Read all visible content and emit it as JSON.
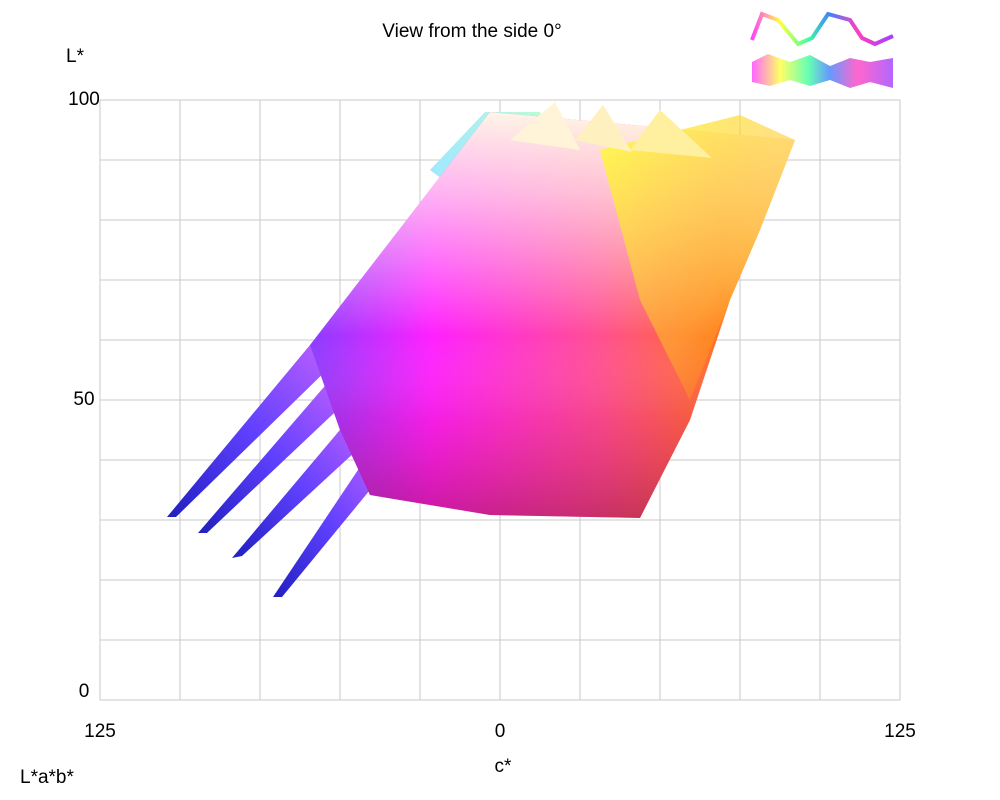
{
  "chart_data": {
    "type": "gamut",
    "title": "View from the side 0°",
    "ylabel": "L*",
    "xlabel": "c*",
    "footer": "L*a*b*",
    "xlim": [
      -125,
      125
    ],
    "ylim": [
      0,
      100
    ],
    "xticks": [
      {
        "value": -125,
        "label": "125"
      },
      0,
      125
    ],
    "yticks": [
      0,
      50,
      100
    ],
    "xgrid": [
      -125,
      -100,
      -75,
      -50,
      -25,
      0,
      25,
      50,
      75,
      100,
      125
    ],
    "ygrid": [
      0,
      10,
      20,
      30,
      40,
      50,
      60,
      70,
      80,
      90,
      100
    ],
    "grid_color": "#c8c8c8"
  }
}
